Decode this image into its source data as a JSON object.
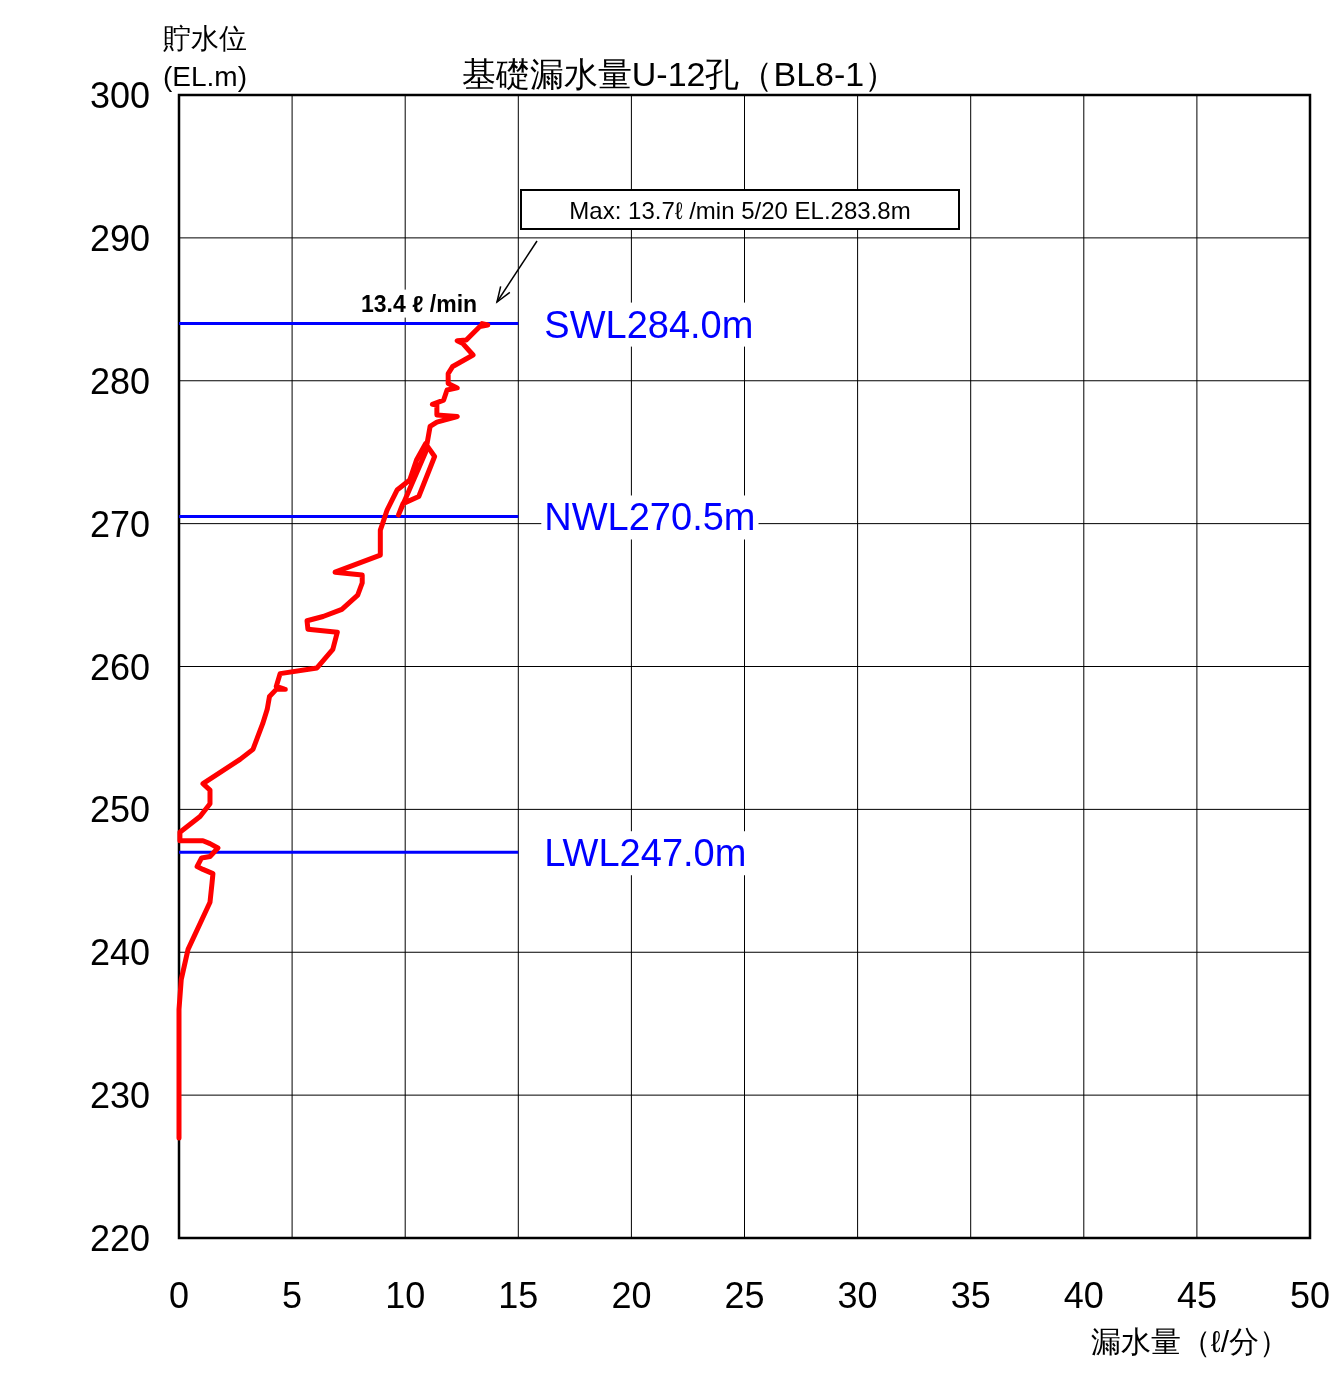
{
  "chart_data": {
    "type": "line",
    "title": "基礎漏水量U-12孔（BL8-1）",
    "xlabel": "漏水量（ℓ/分）",
    "ylabel": "貯水位\n(EL.m)",
    "xlim": [
      0,
      50
    ],
    "xticks": [
      0,
      5,
      10,
      15,
      20,
      25,
      30,
      35,
      40,
      45,
      50
    ],
    "ylim": [
      220,
      300
    ],
    "yticks": [
      220,
      230,
      240,
      250,
      260,
      270,
      280,
      290,
      300
    ],
    "grid": true,
    "series": [
      {
        "color": "#ff0000",
        "x": [
          0,
          0,
          0.1,
          0.4,
          1.37,
          1.46,
          1.5,
          1.06,
          0.8,
          1.0,
          1.37,
          1.72,
          1.37,
          1.06,
          0.04,
          0.04,
          0.93,
          1.37,
          1.37,
          1.06,
          2.7,
          3.27,
          3.7,
          3.9,
          4.0,
          4.3,
          4.7,
          4.3,
          4.47,
          6.1,
          6.8,
          7.0,
          5.7,
          5.66,
          6.37,
          7.2,
          7.9,
          8.1,
          8.1,
          6.9,
          8.9,
          8.9,
          9.0,
          9.2,
          9.64,
          10.2,
          10.5,
          10.9,
          11.3,
          10.6,
          9.9,
          9.7,
          10.9,
          11.1,
          11.4,
          12.3,
          11.4,
          11.4,
          11.2,
          11.7,
          11.85,
          12.3,
          11.9,
          11.9,
          12.1,
          13.0,
          12.55,
          12.3,
          12.7,
          13.3,
          13.65,
          13.4
        ],
        "values": [
          227.0,
          236.0,
          238.1,
          240.2,
          243.5,
          244.85,
          245.5,
          245.8,
          246.0,
          246.6,
          246.7,
          247.3,
          247.6,
          247.8,
          247.8,
          248.4,
          249.5,
          250.4,
          251.35,
          251.8,
          253.5,
          254.2,
          256.0,
          257.0,
          257.9,
          258.4,
          258.4,
          258.6,
          259.5,
          259.9,
          261.2,
          262.4,
          262.6,
          263.2,
          263.5,
          264.0,
          265.0,
          265.85,
          266.4,
          266.6,
          267.8,
          269.55,
          270.0,
          270.95,
          272.35,
          273.05,
          274.45,
          275.6,
          274.7,
          271.9,
          271.4,
          270.6,
          275.0,
          276.8,
          277.1,
          277.5,
          277.6,
          278.3,
          278.35,
          278.65,
          279.35,
          279.5,
          279.8,
          280.5,
          281.0,
          281.8,
          282.6,
          282.8,
          282.85,
          283.8,
          283.9,
          284.0
        ]
      }
    ],
    "ref_lines": [
      {
        "axis": "y",
        "value": 284.0,
        "label": "SWL284.0m",
        "color": "#0000ff"
      },
      {
        "axis": "y",
        "value": 270.5,
        "label": "NWL270.5m",
        "color": "#0000ff"
      },
      {
        "axis": "y",
        "value": 247.0,
        "label": "LWL247.0m",
        "color": "#0000ff"
      }
    ],
    "annotations": [
      {
        "text": "13.4 ℓ /min",
        "x": 13.4,
        "y": 284.0
      },
      "Max: 13.7ℓ /min 5/20 EL.283.8m"
    ]
  }
}
